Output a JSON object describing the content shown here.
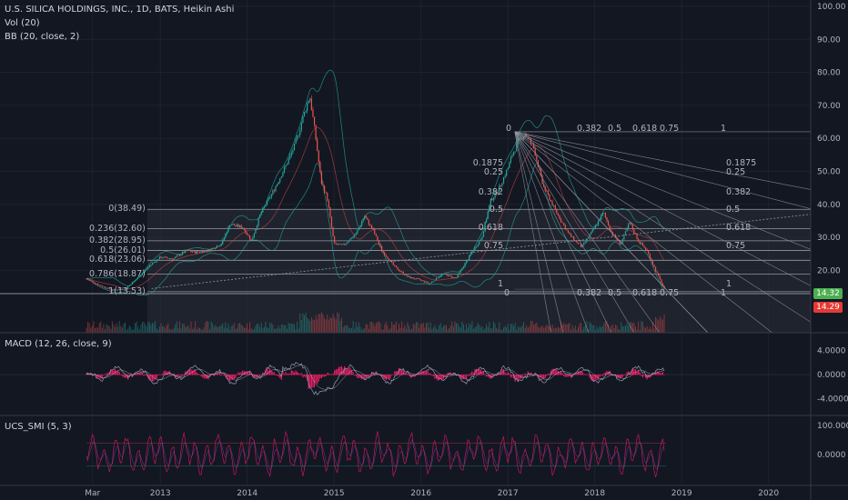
{
  "header": {
    "title": "U.S. SILICA HOLDINGS, INC., 1D, BATS, Heikin Ashi",
    "vol": "Vol (20)",
    "bb": "BB (20, close, 2)"
  },
  "macd_label": "MACD (12, 26, close, 9)",
  "smi_label": "UCS_SMI (5, 3)",
  "colors": {
    "background": "#131722",
    "up": "#26a69a",
    "down": "#ef5350",
    "macd_hist": "#e91e63",
    "fib_line": "#9598a1",
    "fib_fill": "#2a2e39",
    "last_up": "#4caf50",
    "last_down": "#e53935"
  },
  "price_tags": {
    "last": "14.32",
    "close": "14.29"
  },
  "chart_data": [
    {
      "type": "line",
      "name": "price",
      "x_ticks": [
        "Mar",
        "2013",
        "2014",
        "2015",
        "2016",
        "2017",
        "2018",
        "2019",
        "2020"
      ],
      "y_ticks": [
        "100.00",
        "90.00",
        "80.00",
        "70.00",
        "60.00",
        "50.00",
        "40.00",
        "30.00",
        "20.00"
      ],
      "ylim": [
        10,
        100
      ],
      "x": [
        2012.15,
        2012.3,
        2012.45,
        2012.6,
        2012.75,
        2012.9,
        2013.0,
        2013.15,
        2013.3,
        2013.4,
        2013.55,
        2013.7,
        2013.8,
        2013.95,
        2014.05,
        2014.15,
        2014.3,
        2014.45,
        2014.55,
        2014.65,
        2014.72,
        2014.78,
        2014.85,
        2014.92,
        2015.0,
        2015.1,
        2015.25,
        2015.35,
        2015.45,
        2015.55,
        2015.7,
        2015.85,
        2016.0,
        2016.1,
        2016.25,
        2016.4,
        2016.55,
        2016.7,
        2016.8,
        2016.9,
        2017.0,
        2017.05,
        2017.12,
        2017.2,
        2017.3,
        2017.4,
        2017.55,
        2017.7,
        2017.85,
        2018.0,
        2018.1,
        2018.2,
        2018.3,
        2018.4,
        2018.5,
        2018.6,
        2018.7,
        2018.8
      ],
      "values": [
        17.5,
        15.5,
        14.0,
        14.5,
        18.0,
        22.0,
        24.0,
        23.5,
        26.0,
        25.5,
        26.0,
        28.0,
        34.0,
        33.0,
        29.0,
        37.0,
        44.0,
        52.0,
        58.0,
        67.0,
        73.0,
        62.0,
        47.0,
        42.0,
        28.0,
        27.5,
        31.0,
        36.5,
        32.0,
        26.0,
        21.0,
        18.0,
        17.0,
        16.0,
        19.0,
        17.5,
        24.0,
        30.0,
        41.0,
        45.0,
        51.0,
        55.0,
        59.0,
        61.5,
        57.0,
        46.0,
        38.0,
        31.0,
        27.0,
        33.0,
        37.5,
        31.0,
        28.0,
        34.5,
        29.0,
        26.0,
        20.0,
        14.3
      ],
      "fib_retracement": {
        "levels": [
          "0(38.49)",
          "0.236(32.60)",
          "0.382(28.95)",
          "0.5(26.01)",
          "0.618(23.06)",
          "0.786(18.87)",
          "1(13.53)"
        ],
        "values": [
          38.49,
          32.6,
          28.95,
          26.01,
          23.06,
          18.87,
          13.53
        ]
      },
      "fib_fan": {
        "start": [
          2017.08,
          62.0
        ],
        "end": [
          2018.82,
          14.3
        ],
        "top_labels": [
          "0",
          "0.382",
          "0.5",
          "0.618",
          "0.75",
          "1"
        ],
        "left_labels": [
          "0.1875",
          "0.25",
          "0.382",
          "0.5",
          "0.618",
          "0.75",
          "1"
        ],
        "right_labels": [
          "0.1875",
          "0.25",
          "0.382",
          "0.5",
          "0.618",
          "0.75",
          "1"
        ],
        "bottom_labels": [
          "0",
          "0.382",
          "0.5",
          "0.618",
          "0.75",
          "1"
        ]
      }
    },
    {
      "type": "line",
      "name": "macd",
      "title": "MACD (12, 26, close, 9)",
      "y_ticks": [
        "4.0000",
        "0.0000",
        "-4.0000"
      ],
      "ylim": [
        -6,
        6
      ]
    },
    {
      "type": "line",
      "name": "smi",
      "title": "UCS_SMI (5, 3)",
      "y_ticks": [
        "100.0000",
        "0.0000"
      ],
      "ylim": [
        -100,
        120
      ]
    }
  ]
}
